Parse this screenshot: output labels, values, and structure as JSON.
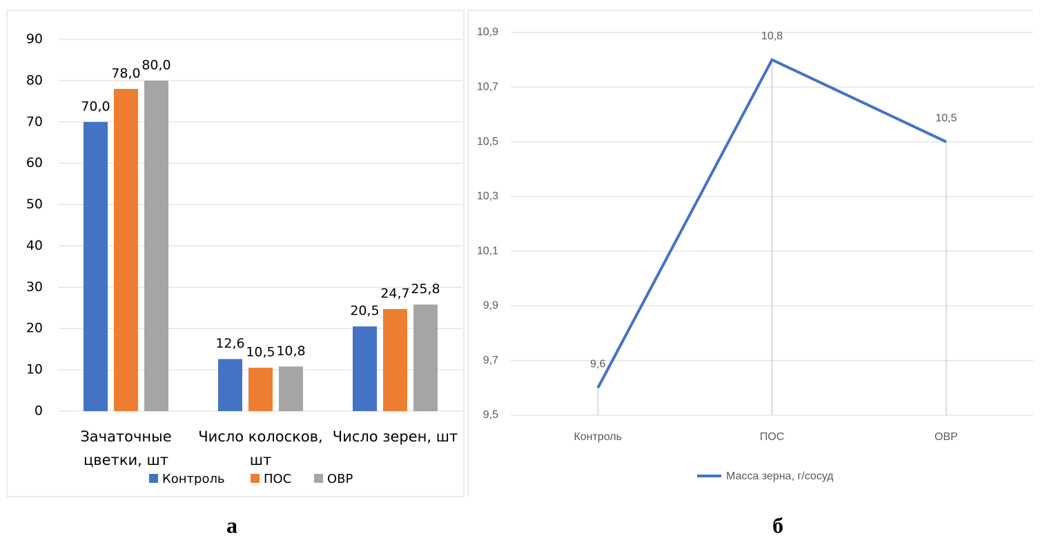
{
  "chart_data": [
    {
      "type": "bar",
      "categories": [
        "Зачаточные цветки, шт",
        "Число колосков, шт",
        "Число зерен, шт"
      ],
      "series": [
        {
          "name": "Контроль",
          "color": "#4472c4",
          "values": [
            70.0,
            12.6,
            20.5
          ],
          "value_labels": [
            "70,0",
            "12,6",
            "20,5"
          ]
        },
        {
          "name": "ПОС",
          "color": "#ed7d31",
          "values": [
            78.0,
            10.5,
            24.7
          ],
          "value_labels": [
            "78,0",
            "10,5",
            "24,7"
          ]
        },
        {
          "name": "ОВР",
          "color": "#a5a5a5",
          "values": [
            80.0,
            10.8,
            25.8
          ],
          "value_labels": [
            "80,0",
            "10,8",
            "25,8"
          ]
        }
      ],
      "ylim": [
        0,
        90
      ],
      "yticks": [
        0,
        10,
        20,
        30,
        40,
        50,
        60,
        70,
        80,
        90
      ],
      "grid": true,
      "legend": "bottom",
      "panel_label": "а"
    },
    {
      "type": "line",
      "categories": [
        "Контроль",
        "ПОС",
        "ОВР"
      ],
      "series": [
        {
          "name": "Масса зерна, г/сосуд",
          "color": "#4472c4",
          "values": [
            9.6,
            10.8,
            10.5
          ],
          "value_labels": [
            "9,6",
            "10,8",
            "10,5"
          ]
        }
      ],
      "ylim": [
        9.5,
        10.9
      ],
      "yticks": [
        {
          "value": 9.5,
          "label": "9,5"
        },
        {
          "value": 9.7,
          "label": "9,7"
        },
        {
          "value": 9.9,
          "label": "9,9"
        },
        {
          "value": 10.1,
          "label": "10,1"
        },
        {
          "value": 10.3,
          "label": "10,3"
        },
        {
          "value": 10.5,
          "label": "10,5"
        },
        {
          "value": 10.7,
          "label": "10,7"
        },
        {
          "value": 10.9,
          "label": "10,9"
        }
      ],
      "grid": true,
      "drop_lines": true,
      "legend": "bottom",
      "panel_label": "б"
    }
  ]
}
